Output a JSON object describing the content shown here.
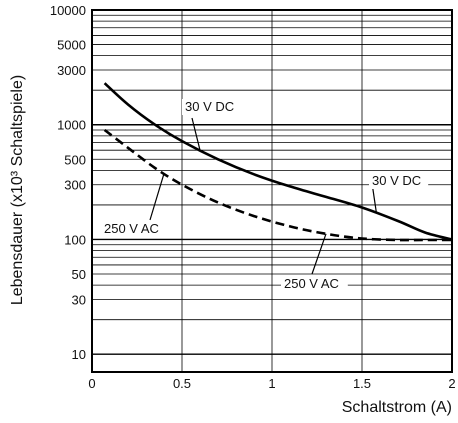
{
  "chart_data": {
    "type": "line",
    "xlabel": "Schaltstrom (A)",
    "ylabel": "Lebensdauer (x10³ Schaltspiele)",
    "xlim": [
      0,
      2
    ],
    "ylim": [
      7,
      10000
    ],
    "y_scale": "log",
    "grid": true,
    "x_ticks": [
      "0",
      "0.5",
      "1",
      "1.5",
      "2"
    ],
    "y_ticks": [
      "10",
      "30",
      "50",
      "100",
      "300",
      "500",
      "1000",
      "3000",
      "5000",
      "10000"
    ],
    "series": [
      {
        "name": "30 V DC",
        "style": "solid",
        "x": [
          0.07,
          0.2,
          0.35,
          0.5,
          0.7,
          0.9,
          1.1,
          1.3,
          1.5,
          1.7,
          1.85,
          2.0
        ],
        "y": [
          2300,
          1500,
          1000,
          720,
          500,
          370,
          290,
          235,
          190,
          145,
          115,
          100
        ]
      },
      {
        "name": "250 V AC",
        "style": "dashed",
        "x": [
          0.07,
          0.2,
          0.35,
          0.5,
          0.7,
          0.9,
          1.1,
          1.3,
          1.5,
          1.7,
          1.85,
          2.0
        ],
        "y": [
          900,
          630,
          420,
          300,
          210,
          160,
          130,
          112,
          102,
          99,
          99,
          99
        ]
      }
    ],
    "annotations": [
      {
        "text": "30 V DC",
        "series": 0
      },
      {
        "text": "30 V DC",
        "series": 0
      },
      {
        "text": "250 V AC",
        "series": 1
      },
      {
        "text": "250 V AC",
        "series": 1
      }
    ]
  }
}
